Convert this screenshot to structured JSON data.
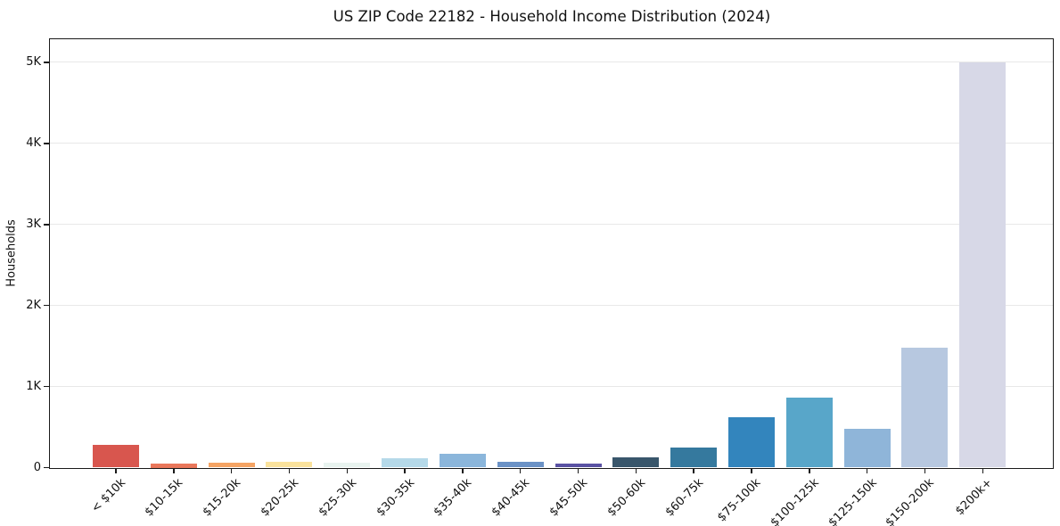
{
  "chart_data": {
    "type": "bar",
    "title": "US ZIP Code 22182 - Household Income Distribution (2024)",
    "xlabel": "",
    "ylabel": "Households",
    "categories": [
      "< $10k",
      "$10-15k",
      "$15-20k",
      "$20-25k",
      "$25-30k",
      "$30-35k",
      "$35-40k",
      "$40-45k",
      "$45-50k",
      "$50-60k",
      "$60-75k",
      "$75-100k",
      "$100-125k",
      "$125-150k",
      "$150-200k",
      "$200k+"
    ],
    "values": [
      285,
      55,
      65,
      70,
      60,
      115,
      175,
      75,
      50,
      130,
      250,
      620,
      860,
      480,
      1480,
      5000
    ],
    "bar_colors": [
      "#d8564e",
      "#e9775b",
      "#f5a464",
      "#fae29c",
      "#e8f3ef",
      "#b5d9e9",
      "#8bb6db",
      "#6b92c6",
      "#5a52a3",
      "#39566b",
      "#35799e",
      "#3385bd",
      "#58a6c9",
      "#8fb5d9",
      "#b7c8e0",
      "#d7d8e7"
    ],
    "yticks": {
      "values": [
        0,
        1000,
        2000,
        3000,
        4000,
        5000
      ],
      "labels": [
        "0",
        "1K",
        "2K",
        "3K",
        "4K",
        "5K"
      ]
    },
    "ylim": [
      0,
      5280
    ],
    "grid": "horizontal",
    "legend": "none",
    "x_tick_rotation_deg": 45
  },
  "style_colors": {
    "background": "#ffffff",
    "spine": "#1a1a1a",
    "gridline": "#e8e8e8",
    "text": "#111111"
  }
}
